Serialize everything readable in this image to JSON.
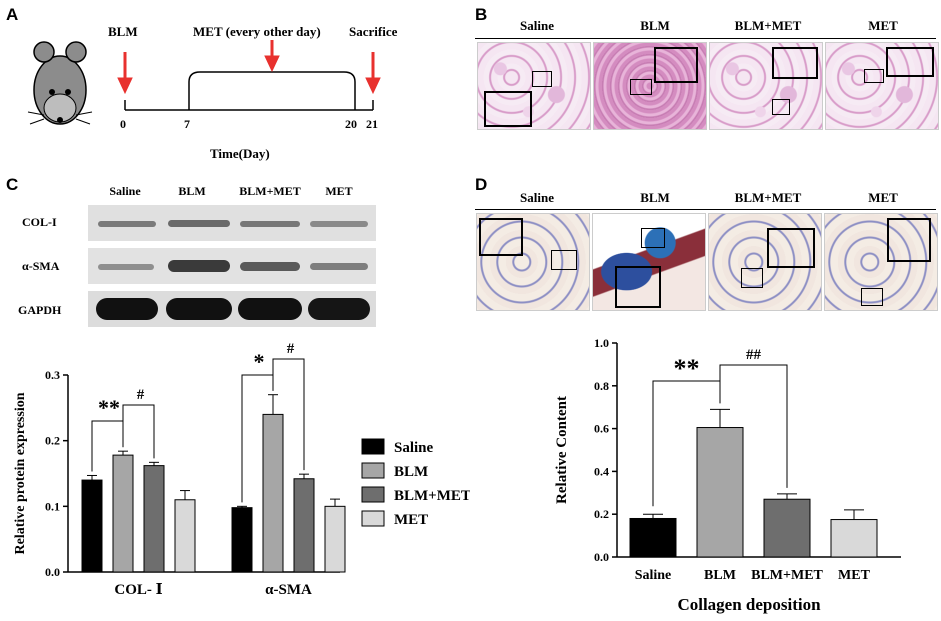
{
  "panels": {
    "a": {
      "letter": "A",
      "events": {
        "blm": "BLM",
        "met": "MET (every other day)",
        "sacrifice": "Sacrifice"
      },
      "ticks": [
        "0",
        "7",
        "20",
        "21"
      ],
      "axis_label": "Time(Day)"
    },
    "b": {
      "letter": "B",
      "labels": [
        "Saline",
        "BLM",
        "BLM+MET",
        "MET"
      ]
    },
    "c": {
      "letter": "C",
      "wb_headers": [
        "Saline",
        "BLM",
        "BLM+MET",
        "MET"
      ],
      "wb_rows": [
        "COL-I",
        "α-SMA",
        "GAPDH"
      ]
    },
    "d": {
      "letter": "D",
      "labels": [
        "Saline",
        "BLM",
        "BLM+MET",
        "MET"
      ]
    }
  },
  "colors": {
    "saline": "#000000",
    "blm": "#a6a6a6",
    "blm_met": "#6e6e6e",
    "met": "#d9d9d9",
    "arrow": "#e8312e"
  },
  "chart_data": [
    {
      "type": "bar",
      "ylabel": "Relative protein expression",
      "ylim": [
        0.0,
        0.3
      ],
      "yticks": [
        "0.0",
        "0.1",
        "0.2",
        "0.3"
      ],
      "categories": [
        "COL- Ⅰ",
        "α-SMA"
      ],
      "series": [
        {
          "name": "Saline",
          "values": [
            0.14,
            0.098
          ],
          "errors": [
            0.007,
            0.002
          ]
        },
        {
          "name": "BLM",
          "values": [
            0.178,
            0.24
          ],
          "errors": [
            0.006,
            0.03
          ]
        },
        {
          "name": "BLM+MET",
          "values": [
            0.162,
            0.142
          ],
          "errors": [
            0.005,
            0.007
          ]
        },
        {
          "name": "MET",
          "values": [
            0.11,
            0.1
          ],
          "errors": [
            0.014,
            0.011
          ]
        }
      ],
      "annotations": [
        {
          "category": "COL- Ⅰ",
          "text": "**"
        },
        {
          "category": "COL- Ⅰ",
          "text": "#"
        },
        {
          "category": "α-SMA",
          "text": "*"
        },
        {
          "category": "α-SMA",
          "text": "#"
        }
      ],
      "legend": {
        "position": "right"
      }
    },
    {
      "type": "bar",
      "xlabel": "Collagen deposition",
      "ylabel": "Relative Content",
      "ylim": [
        0.0,
        1.0
      ],
      "yticks": [
        "0.0",
        "0.2",
        "0.4",
        "0.6",
        "0.8",
        "1.0"
      ],
      "categories": [
        "Saline",
        "BLM",
        "BLM+MET",
        "MET"
      ],
      "values": [
        0.18,
        0.605,
        0.27,
        0.175
      ],
      "errors": [
        0.02,
        0.085,
        0.025,
        0.045
      ],
      "annotations": [
        {
          "text": "**"
        },
        {
          "text": "##"
        }
      ]
    }
  ]
}
